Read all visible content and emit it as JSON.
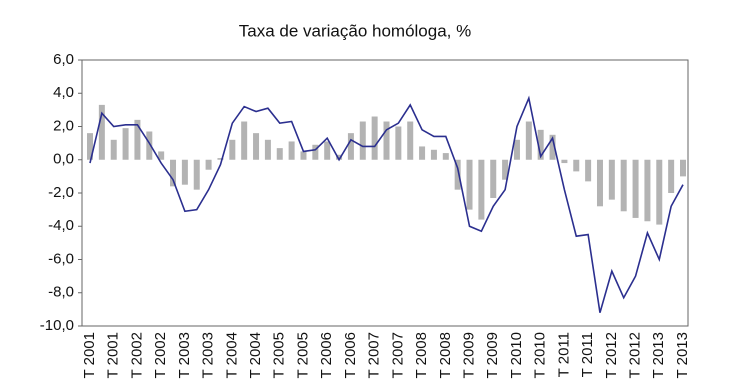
{
  "chart_data": {
    "type": "bar-line",
    "subtitle": "Taxa de variação homóloga, %",
    "categories": [
      "T 2001",
      null,
      "T 2001",
      null,
      "T 2002",
      null,
      "T 2002",
      null,
      "T 2003",
      null,
      "T 2003",
      null,
      "T 2004",
      null,
      "T 2004",
      null,
      "T 2005",
      null,
      "T 2005",
      null,
      "T 2006",
      null,
      "T 2006",
      null,
      "T 2007",
      null,
      "T 2007",
      null,
      "T 2008",
      null,
      "T 2008",
      null,
      "T 2009",
      null,
      "T 2009",
      null,
      "T 2010",
      null,
      "T 2010",
      null,
      "T 2011",
      null,
      "T 2011",
      null,
      "T 2012",
      null,
      "T 2012",
      null,
      "T 2013",
      null,
      "T 2013"
    ],
    "series": [
      {
        "type": "bar",
        "color": "#b3b3b3",
        "values": [
          1.6,
          3.3,
          1.2,
          1.9,
          2.4,
          1.7,
          0.5,
          -1.6,
          -1.5,
          -1.8,
          -0.6,
          0.1,
          1.2,
          2.3,
          1.6,
          1.2,
          0.7,
          1.1,
          0.5,
          0.9,
          1.1,
          0.3,
          1.6,
          2.3,
          2.6,
          2.3,
          2.0,
          2.3,
          0.8,
          0.6,
          0.4,
          -1.8,
          -3.0,
          -3.6,
          -2.3,
          -1.2,
          1.2,
          2.3,
          1.8,
          1.5,
          -0.2,
          -0.7,
          -1.3,
          -2.8,
          -2.4,
          -3.1,
          -3.5,
          -3.7,
          -3.9,
          -2.0,
          -1.0
        ]
      },
      {
        "type": "line",
        "color": "#2b2f8f",
        "values": [
          -0.2,
          2.8,
          2.0,
          2.1,
          2.1,
          1.0,
          -0.2,
          -1.2,
          -3.1,
          -3.0,
          -1.8,
          -0.3,
          2.2,
          3.2,
          2.9,
          3.1,
          2.2,
          2.3,
          0.5,
          0.6,
          1.3,
          0.0,
          1.2,
          0.8,
          0.8,
          1.8,
          2.2,
          3.3,
          1.8,
          1.4,
          1.4,
          -0.5,
          -4.0,
          -4.3,
          -2.8,
          -1.8,
          2.0,
          3.7,
          0.2,
          1.3,
          -1.8,
          -4.6,
          -4.5,
          -9.2,
          -6.7,
          -8.3,
          -7.0,
          -4.4,
          -6.0,
          -2.8,
          -1.5
        ]
      }
    ],
    "ylim": [
      -10,
      6
    ],
    "yticks": [
      {
        "value": -10,
        "label": "-10,0"
      },
      {
        "value": -8,
        "label": "-8,0"
      },
      {
        "value": -6,
        "label": "-6,0"
      },
      {
        "value": -4,
        "label": "-4,0"
      },
      {
        "value": -2,
        "label": "-2,0"
      },
      {
        "value": 0,
        "label": "0,0"
      },
      {
        "value": 2,
        "label": "2,0"
      },
      {
        "value": 4,
        "label": "4,0"
      },
      {
        "value": 6,
        "label": "6,0"
      }
    ],
    "grid": false
  }
}
